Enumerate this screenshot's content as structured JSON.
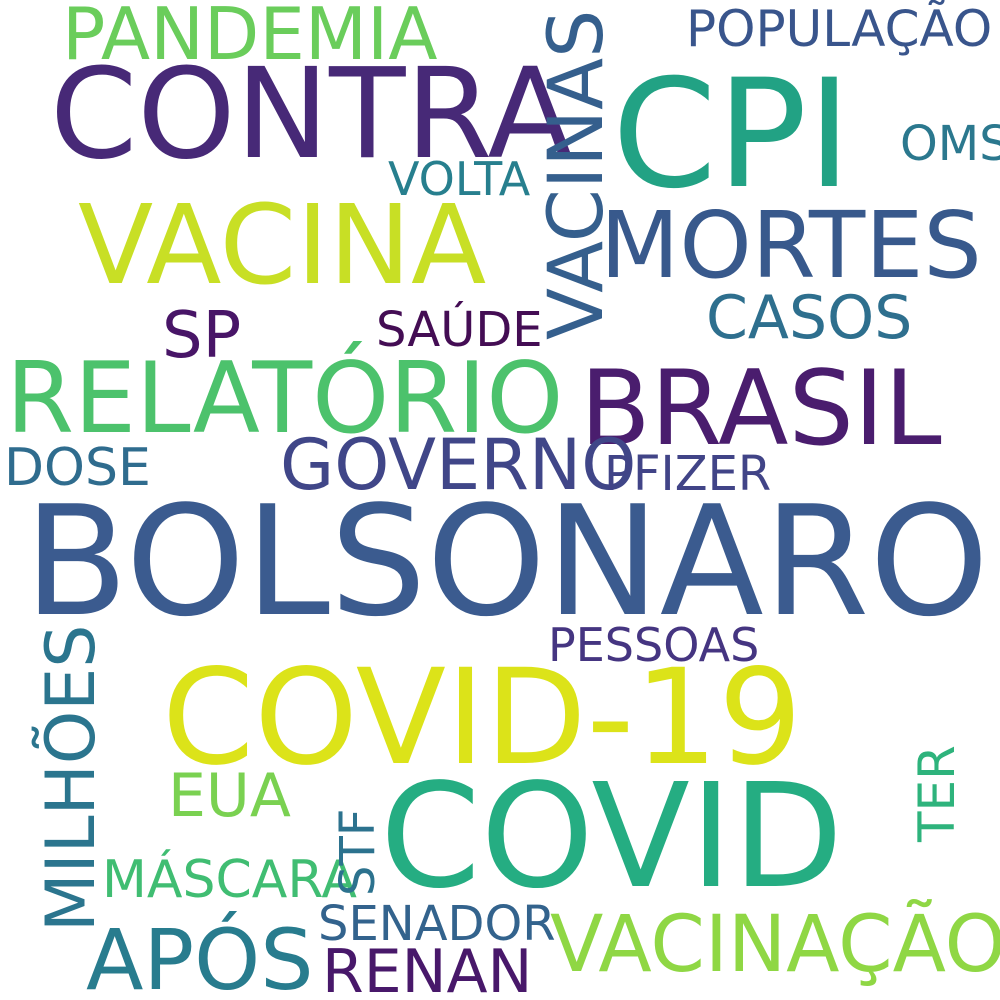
{
  "words": {
    "bolsonaro": {
      "text": "BOLSONARO",
      "color": "#3b5b8f"
    },
    "covid": {
      "text": "COVID",
      "color": "#25ad82"
    },
    "covid19": {
      "text": "COVID-19",
      "color": "#dce319"
    },
    "contra": {
      "text": "CONTRA",
      "color": "#472977"
    },
    "cpi": {
      "text": "CPI",
      "color": "#22a284"
    },
    "vacina": {
      "text": "VACINA",
      "color": "#c8df25"
    },
    "brasil": {
      "text": "BRASIL",
      "color": "#4a1d6e"
    },
    "relatorio": {
      "text": "RELATÓRIO",
      "color": "#4cc26c"
    },
    "pandemia": {
      "text": "PANDEMIA",
      "color": "#6acd5b"
    },
    "vacinas": {
      "text": "VACINAS",
      "color": "#355f8d"
    },
    "mortes": {
      "text": "MORTES",
      "color": "#38598c"
    },
    "populacao": {
      "text": "POPULAÇÃO",
      "color": "#39558c"
    },
    "oms": {
      "text": "OMS",
      "color": "#2b788e"
    },
    "volta": {
      "text": "VOLTA",
      "color": "#277f8e"
    },
    "casos": {
      "text": "CASOS",
      "color": "#2e6f8e"
    },
    "sp": {
      "text": "SP",
      "color": "#481567"
    },
    "saude": {
      "text": "SAÚDE",
      "color": "#440d54"
    },
    "governo": {
      "text": "GOVERNO",
      "color": "#404688"
    },
    "pfizer": {
      "text": "PFIZER",
      "color": "#414487"
    },
    "dose": {
      "text": "DOSE",
      "color": "#2f6c8e"
    },
    "pessoas": {
      "text": "PESSOAS",
      "color": "#453581"
    },
    "milhoes": {
      "text": "MILHÕES",
      "color": "#2b758e"
    },
    "eua": {
      "text": "EUA",
      "color": "#7ad151"
    },
    "mascara": {
      "text": "MÁSCARA",
      "color": "#40bd72"
    },
    "stf": {
      "text": "STF",
      "color": "#2c728e"
    },
    "ter": {
      "text": "TER",
      "color": "#2eb37c"
    },
    "apos": {
      "text": "APÓS",
      "color": "#287c8e"
    },
    "senador": {
      "text": "SENADOR",
      "color": "#33638d"
    },
    "renan": {
      "text": "RENAN",
      "color": "#48186a"
    },
    "vacinacao": {
      "text": "VACINAÇÃO",
      "color": "#8fd744"
    }
  }
}
